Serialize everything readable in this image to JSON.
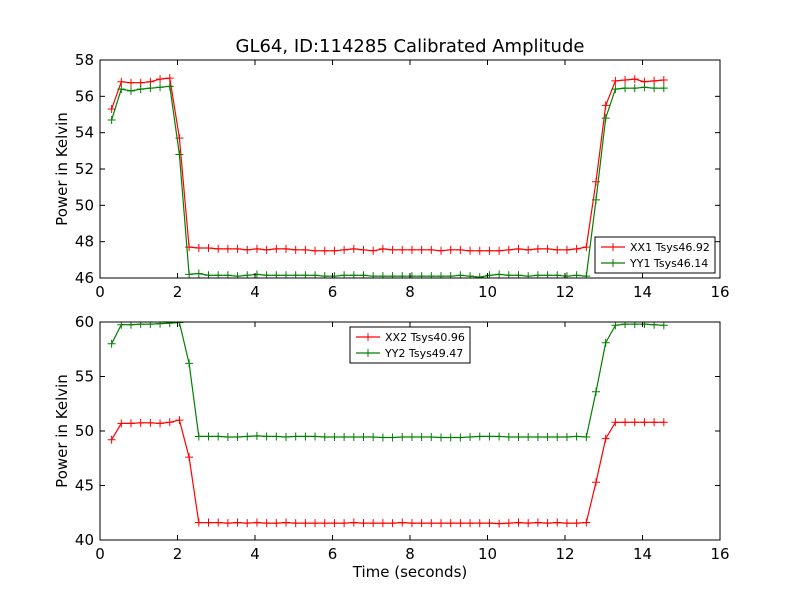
{
  "title": "GL64, ID:114285 Calibrated Amplitude",
  "chart_data": [
    {
      "type": "line",
      "xlabel": "",
      "ylabel": "Power in Kelvin",
      "xlim": [
        0,
        16
      ],
      "ylim": [
        46,
        58
      ],
      "xticks": [
        0,
        2,
        4,
        6,
        8,
        10,
        12,
        14,
        16
      ],
      "yticks": [
        46,
        48,
        50,
        52,
        54,
        56,
        58
      ],
      "grid": false,
      "legend_position": "lower-right",
      "x": [
        0.3,
        0.55,
        0.8,
        1.05,
        1.3,
        1.55,
        1.8,
        2.05,
        2.3,
        2.55,
        2.8,
        3.05,
        3.3,
        3.55,
        3.8,
        4.05,
        4.3,
        4.55,
        4.8,
        5.05,
        5.3,
        5.55,
        5.8,
        6.05,
        6.3,
        6.55,
        6.8,
        7.05,
        7.3,
        7.55,
        7.8,
        8.05,
        8.3,
        8.55,
        8.8,
        9.05,
        9.3,
        9.55,
        9.8,
        10.05,
        10.3,
        10.55,
        10.8,
        11.05,
        11.3,
        11.55,
        11.8,
        12.05,
        12.3,
        12.55,
        12.8,
        13.05,
        13.3,
        13.55,
        13.8,
        14.05,
        14.3,
        14.55
      ],
      "series": [
        {
          "name": "XX1 Tsys46.92",
          "color": "#ff0000",
          "values": [
            55.3,
            56.8,
            56.75,
            56.75,
            56.8,
            56.95,
            57.0,
            53.7,
            47.7,
            47.65,
            47.65,
            47.6,
            47.6,
            47.6,
            47.55,
            47.6,
            47.55,
            47.6,
            47.6,
            47.55,
            47.55,
            47.5,
            47.5,
            47.5,
            47.55,
            47.6,
            47.55,
            47.5,
            47.6,
            47.55,
            47.55,
            47.55,
            47.55,
            47.55,
            47.5,
            47.55,
            47.55,
            47.5,
            47.5,
            47.5,
            47.5,
            47.55,
            47.6,
            47.55,
            47.6,
            47.6,
            47.55,
            47.55,
            47.6,
            47.7,
            51.3,
            55.5,
            56.85,
            56.9,
            56.95,
            56.8,
            56.85,
            56.9
          ]
        },
        {
          "name": "YY1 Tsys46.14",
          "color": "#008000",
          "values": [
            54.7,
            56.4,
            56.3,
            56.4,
            56.45,
            56.5,
            56.55,
            52.8,
            46.2,
            46.25,
            46.15,
            46.15,
            46.15,
            46.1,
            46.15,
            46.2,
            46.15,
            46.15,
            46.15,
            46.15,
            46.15,
            46.15,
            46.1,
            46.1,
            46.15,
            46.15,
            46.15,
            46.1,
            46.1,
            46.1,
            46.1,
            46.1,
            46.1,
            46.1,
            46.1,
            46.1,
            46.15,
            46.1,
            46.05,
            46.15,
            46.2,
            46.15,
            46.15,
            46.1,
            46.15,
            46.15,
            46.15,
            46.1,
            46.15,
            46.1,
            50.3,
            54.8,
            56.4,
            56.45,
            56.45,
            56.5,
            56.45,
            56.45
          ]
        }
      ]
    },
    {
      "type": "line",
      "xlabel": "Time (seconds)",
      "ylabel": "Power in Kelvin",
      "xlim": [
        0,
        16
      ],
      "ylim": [
        40,
        60
      ],
      "xticks": [
        0,
        2,
        4,
        6,
        8,
        10,
        12,
        14,
        16
      ],
      "yticks": [
        40,
        45,
        50,
        55,
        60
      ],
      "grid": false,
      "legend_position": "upper-center",
      "x": [
        0.3,
        0.55,
        0.8,
        1.05,
        1.3,
        1.55,
        1.8,
        2.05,
        2.3,
        2.55,
        2.8,
        3.05,
        3.3,
        3.55,
        3.8,
        4.05,
        4.3,
        4.55,
        4.8,
        5.05,
        5.3,
        5.55,
        5.8,
        6.05,
        6.3,
        6.55,
        6.8,
        7.05,
        7.3,
        7.55,
        7.8,
        8.05,
        8.3,
        8.55,
        8.8,
        9.05,
        9.3,
        9.55,
        9.8,
        10.05,
        10.3,
        10.55,
        10.8,
        11.05,
        11.3,
        11.55,
        11.8,
        12.05,
        12.3,
        12.55,
        12.8,
        13.05,
        13.3,
        13.55,
        13.8,
        14.05,
        14.3,
        14.55
      ],
      "series": [
        {
          "name": "XX2 Tsys40.96",
          "color": "#ff0000",
          "values": [
            49.2,
            50.7,
            50.7,
            50.75,
            50.75,
            50.7,
            50.8,
            51.0,
            47.6,
            41.6,
            41.6,
            41.6,
            41.55,
            41.6,
            41.55,
            41.6,
            41.55,
            41.55,
            41.6,
            41.55,
            41.55,
            41.55,
            41.55,
            41.55,
            41.55,
            41.6,
            41.55,
            41.55,
            41.55,
            41.55,
            41.6,
            41.55,
            41.55,
            41.55,
            41.55,
            41.55,
            41.55,
            41.55,
            41.55,
            41.55,
            41.5,
            41.55,
            41.6,
            41.55,
            41.6,
            41.55,
            41.6,
            41.55,
            41.55,
            41.6,
            45.3,
            49.3,
            50.8,
            50.8,
            50.8,
            50.8,
            50.8,
            50.8
          ]
        },
        {
          "name": "YY2 Tsys49.47",
          "color": "#008000",
          "values": [
            58.0,
            59.75,
            59.75,
            59.8,
            59.8,
            59.85,
            59.9,
            59.95,
            56.2,
            49.5,
            49.5,
            49.5,
            49.45,
            49.45,
            49.5,
            49.55,
            49.5,
            49.5,
            49.45,
            49.5,
            49.5,
            49.5,
            49.45,
            49.45,
            49.45,
            49.45,
            49.45,
            49.45,
            49.4,
            49.4,
            49.45,
            49.45,
            49.45,
            49.45,
            49.4,
            49.4,
            49.4,
            49.45,
            49.5,
            49.5,
            49.5,
            49.45,
            49.45,
            49.45,
            49.45,
            49.45,
            49.45,
            49.45,
            49.5,
            49.45,
            53.6,
            58.1,
            59.7,
            59.8,
            59.8,
            59.8,
            59.75,
            59.7
          ]
        }
      ]
    }
  ]
}
